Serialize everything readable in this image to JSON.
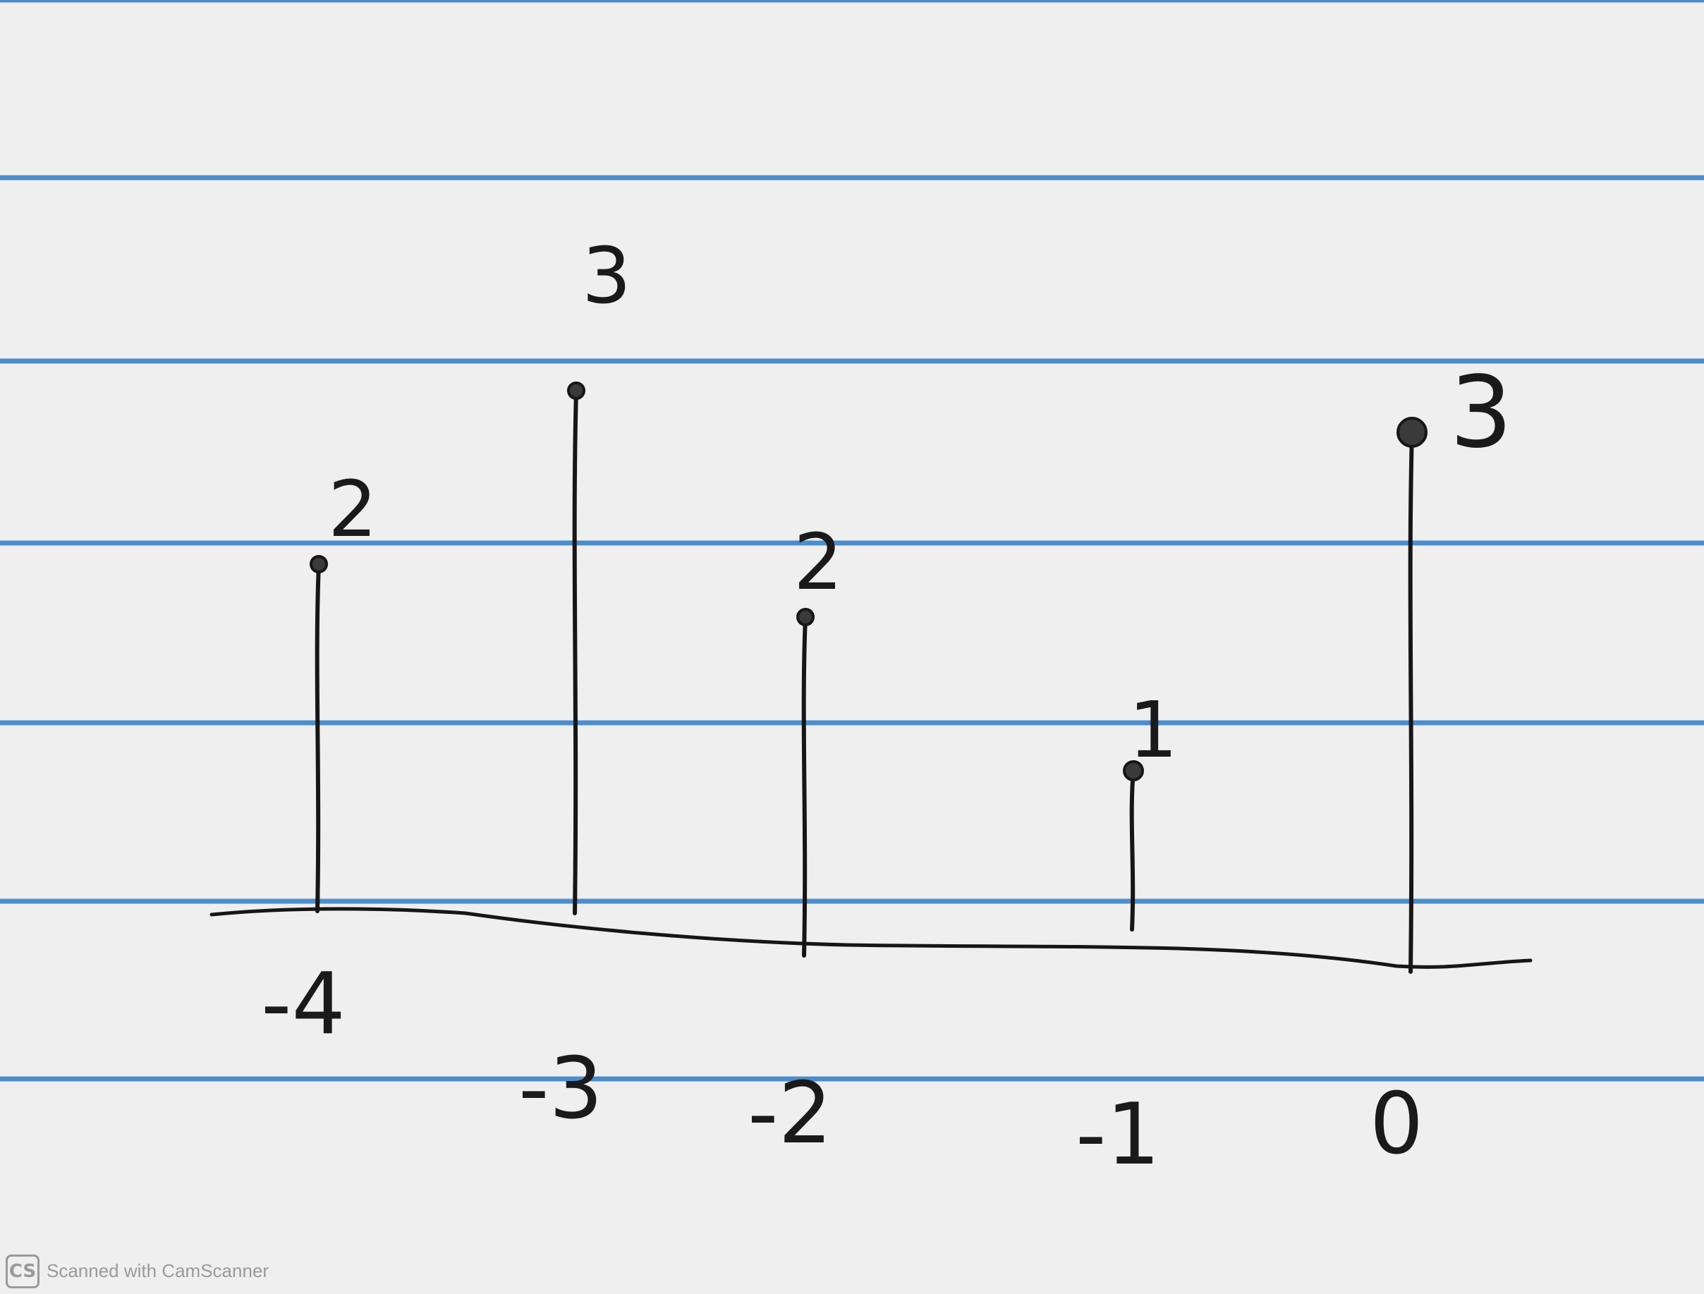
{
  "chart_data": {
    "type": "stem",
    "x": [
      -4,
      -3,
      -2,
      -1,
      0
    ],
    "values": [
      2,
      3,
      2,
      1,
      3
    ],
    "x_tick_labels": [
      "-4",
      "-3",
      "-2",
      "-1",
      "0"
    ],
    "value_labels": [
      "2",
      "3",
      "2",
      "1",
      "3"
    ],
    "title": "",
    "xlabel": "",
    "ylabel": "",
    "ylim": [
      0,
      3
    ],
    "grid": false
  },
  "colors": {
    "paper": "#efefef",
    "rule_lines": "#2f7cc6",
    "ink": "#161616",
    "watermark": "#9a9a9a"
  },
  "watermark": {
    "logo": "CS",
    "text": "Scanned with CamScanner"
  }
}
